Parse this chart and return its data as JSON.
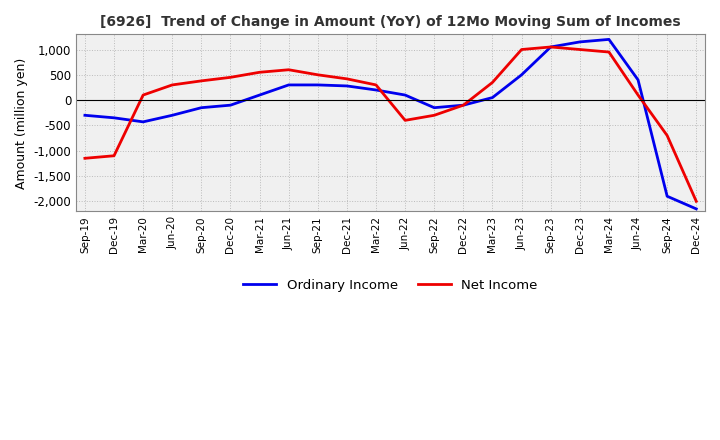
{
  "title": "[6926]  Trend of Change in Amount (YoY) of 12Mo Moving Sum of Incomes",
  "ylabel": "Amount (million yen)",
  "background_color": "#ffffff",
  "plot_bg_color": "#f0f0f0",
  "grid_color": "#bbbbbb",
  "x_labels": [
    "Sep-19",
    "Dec-19",
    "Mar-20",
    "Jun-20",
    "Sep-20",
    "Dec-20",
    "Mar-21",
    "Jun-21",
    "Sep-21",
    "Dec-21",
    "Mar-22",
    "Jun-22",
    "Sep-22",
    "Dec-22",
    "Mar-23",
    "Jun-23",
    "Sep-23",
    "Dec-23",
    "Mar-24",
    "Jun-24",
    "Sep-24",
    "Dec-24"
  ],
  "ordinary_income": [
    -300,
    -350,
    -430,
    -300,
    -150,
    -100,
    100,
    300,
    300,
    280,
    200,
    100,
    -150,
    -100,
    50,
    500,
    1050,
    1150,
    1200,
    400,
    -1900,
    -2150
  ],
  "net_income": [
    -1150,
    -1100,
    100,
    300,
    380,
    450,
    550,
    600,
    500,
    420,
    300,
    -400,
    -300,
    -100,
    350,
    1000,
    1050,
    1000,
    950,
    100,
    -700,
    -2000
  ],
  "ordinary_color": "#0000ee",
  "net_color": "#ee0000",
  "ylim": [
    -2200,
    1300
  ],
  "yticks": [
    -2000,
    -1500,
    -1000,
    -500,
    0,
    500,
    1000
  ],
  "legend_labels": [
    "Ordinary Income",
    "Net Income"
  ]
}
